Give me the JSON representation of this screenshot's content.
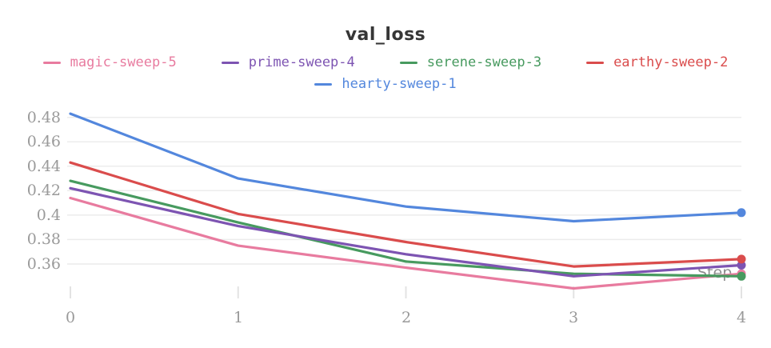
{
  "chart_data": {
    "type": "line",
    "title": "val_loss",
    "xlabel": "Step",
    "x": [
      0,
      1,
      2,
      3,
      4
    ],
    "xtick_labels": [
      "0",
      "1",
      "2",
      "3",
      "4"
    ],
    "ytick_labels": [
      "0.48",
      "0.46",
      "0.44",
      "0.42",
      "0.4",
      "0.38",
      "0.36"
    ],
    "ytick_values": [
      0.48,
      0.46,
      0.44,
      0.42,
      0.4,
      0.38,
      0.36
    ],
    "ylim": [
      0.335,
      0.49
    ],
    "grid": "horizontal",
    "legend_position": "top",
    "colors": {
      "title_text": "#363636",
      "tick_text": "#9a9a9a",
      "gridline": "#ececec",
      "tick_mark": "#e3e3e3"
    },
    "series": [
      {
        "name": "magic-sweep-5",
        "color": "#E87B9F",
        "values": [
          0.414,
          0.375,
          0.357,
          0.34,
          0.352
        ]
      },
      {
        "name": "prime-sweep-4",
        "color": "#7D54B2",
        "values": [
          0.422,
          0.391,
          0.368,
          0.35,
          0.359
        ]
      },
      {
        "name": "serene-sweep-3",
        "color": "#479A5F",
        "values": [
          0.428,
          0.394,
          0.362,
          0.352,
          0.35
        ]
      },
      {
        "name": "earthy-sweep-2",
        "color": "#DA4C4C",
        "values": [
          0.443,
          0.401,
          0.378,
          0.358,
          0.364
        ]
      },
      {
        "name": "hearty-sweep-1",
        "color": "#5387DD",
        "values": [
          0.483,
          0.43,
          0.407,
          0.395,
          0.402
        ]
      }
    ]
  }
}
